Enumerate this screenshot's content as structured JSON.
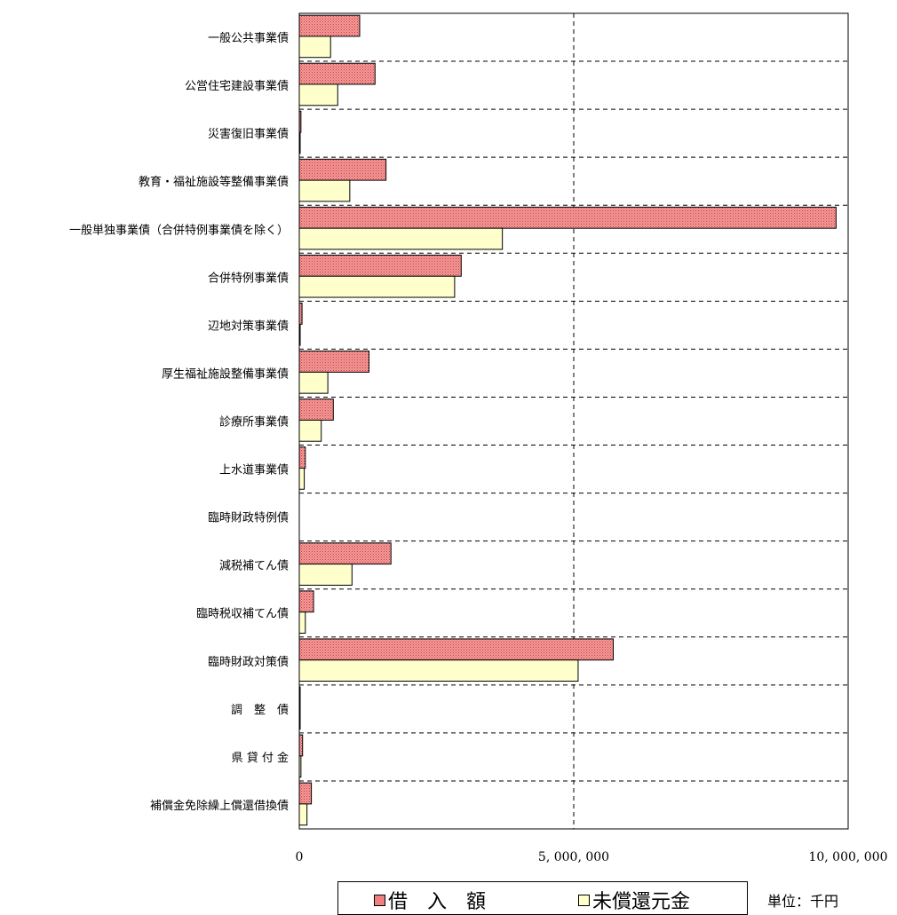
{
  "chart_data": {
    "type": "bar",
    "orientation": "horizontal",
    "categories": [
      "一般公共事業債",
      "公営住宅建設事業債",
      "災害復旧事業債",
      "教育・福祉施設等整備事業債",
      "一般単独事業債（合併特例事業債を除く）",
      "合併特例事業債",
      "辺地対策事業債",
      "厚生福祉施設整備事業債",
      "診療所事業債",
      "上水道事業債",
      "臨時財政特例債",
      "減税補てん債",
      "臨時税収補てん債",
      "臨時財政対策債",
      "調　整　債",
      "県 貸 付 金",
      "補償金免除繰上償還借換債"
    ],
    "series": [
      {
        "name": "借入額",
        "legend_label": "借　入　額",
        "color": "#f08080",
        "values": [
          1100000,
          1380000,
          30000,
          1580000,
          9780000,
          2950000,
          50000,
          1270000,
          620000,
          110000,
          0,
          1670000,
          260000,
          5720000,
          15000,
          60000,
          220000
        ]
      },
      {
        "name": "未償還元金",
        "legend_label": "未償還元金",
        "color": "#ffffcc",
        "values": [
          570000,
          700000,
          10000,
          920000,
          3700000,
          2830000,
          15000,
          520000,
          400000,
          90000,
          0,
          960000,
          110000,
          5080000,
          5000,
          30000,
          140000
        ]
      }
    ],
    "x_ticks": [
      "0",
      "5, 000, 000",
      "10, 000, 000"
    ],
    "xlim": [
      0,
      10000000
    ],
    "grid": "dashed gridlines",
    "legend_position": "bottom",
    "unit_note": "単位：千円"
  }
}
